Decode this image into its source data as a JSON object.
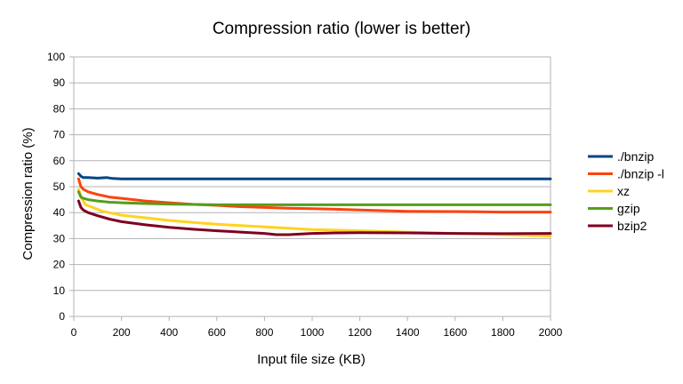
{
  "chart_data": {
    "type": "line",
    "title": "Compression ratio (lower is better)",
    "xlabel": "Input file size (KB)",
    "ylabel": "Compression ratio (%)",
    "xlim": [
      0,
      2000
    ],
    "ylim": [
      0,
      100
    ],
    "x_ticks": [
      0,
      200,
      400,
      600,
      800,
      1000,
      1200,
      1400,
      1600,
      1800,
      2000
    ],
    "y_ticks": [
      0,
      10,
      20,
      30,
      40,
      50,
      60,
      70,
      80,
      90,
      100
    ],
    "grid": "horizontal",
    "legend_position": "right",
    "series": [
      {
        "name": "./bnzip",
        "color": "#004586",
        "x": [
          20,
          30,
          40,
          60,
          100,
          140,
          160,
          200,
          400,
          600,
          800,
          1000,
          1200,
          1400,
          1600,
          1800,
          2000
        ],
        "y": [
          55,
          54,
          53.5,
          53.5,
          53.3,
          53.5,
          53.2,
          53,
          53,
          53,
          53,
          53,
          53,
          53,
          53,
          53,
          53
        ]
      },
      {
        "name": "./bnzip -l",
        "color": "#ff420e",
        "x": [
          20,
          30,
          40,
          60,
          100,
          150,
          200,
          300,
          400,
          500,
          600,
          700,
          800,
          900,
          1000,
          1100,
          1200,
          1400,
          1600,
          1700,
          1800,
          2000
        ],
        "y": [
          53,
          50,
          49,
          48,
          47,
          46,
          45.5,
          44.5,
          43.8,
          43.2,
          42.8,
          42.3,
          42,
          41.7,
          41.5,
          41.3,
          41,
          40.5,
          40.4,
          40.3,
          40.2,
          40.2
        ]
      },
      {
        "name": "xz",
        "color": "#ffd320",
        "x": [
          20,
          30,
          50,
          80,
          120,
          200,
          300,
          400,
          500,
          600,
          700,
          800,
          900,
          1000,
          1200,
          1400,
          1600,
          1800,
          2000
        ],
        "y": [
          49,
          46,
          43,
          42,
          40.5,
          39,
          38,
          37,
          36.2,
          35.5,
          35,
          34.5,
          34,
          33.5,
          33,
          32.5,
          32,
          31.5,
          31
        ]
      },
      {
        "name": "gzip",
        "color": "#579d1c",
        "x": [
          20,
          30,
          40,
          60,
          100,
          150,
          200,
          300,
          400,
          600,
          800,
          1000,
          1200,
          1400,
          1600,
          1800,
          2000
        ],
        "y": [
          48,
          46,
          45.5,
          45,
          44.5,
          44,
          43.8,
          43.5,
          43.3,
          43,
          43,
          43,
          43,
          43,
          43,
          43,
          43
        ]
      },
      {
        "name": "bzip2",
        "color": "#7e0021",
        "x": [
          20,
          30,
          40,
          60,
          100,
          150,
          200,
          300,
          400,
          500,
          600,
          700,
          800,
          850,
          900,
          1000,
          1100,
          1200,
          1400,
          1600,
          1800,
          2000
        ],
        "y": [
          44.5,
          42,
          41,
          40,
          38.8,
          37.5,
          36.5,
          35.3,
          34.3,
          33.6,
          33,
          32.5,
          32,
          31.5,
          31.5,
          32,
          32.2,
          32.3,
          32.2,
          32,
          31.9,
          32
        ]
      }
    ]
  }
}
